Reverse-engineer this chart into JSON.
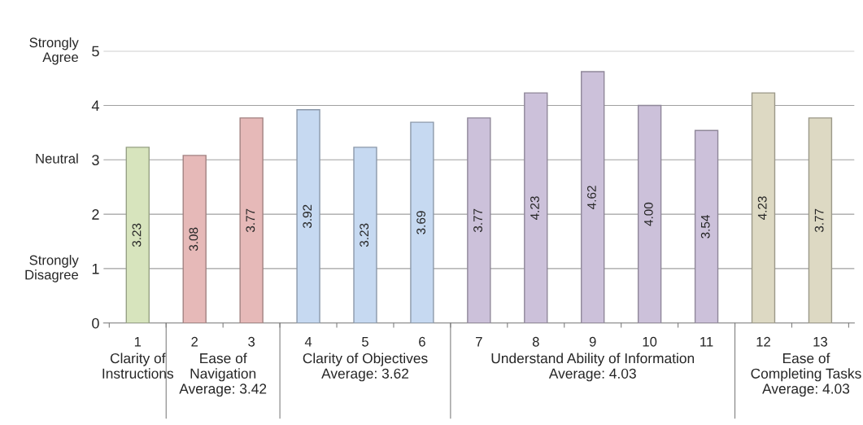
{
  "chart_data": {
    "type": "bar",
    "categories": [
      "1",
      "2",
      "3",
      "4",
      "5",
      "6",
      "7",
      "8",
      "9",
      "10",
      "11",
      "12",
      "13"
    ],
    "values": [
      3.23,
      3.08,
      3.77,
      3.92,
      3.23,
      3.69,
      3.77,
      4.23,
      4.62,
      4.0,
      3.54,
      4.23,
      3.77
    ],
    "value_labels": [
      "3.23",
      "3.08",
      "3.77",
      "3.92",
      "3.23",
      "3.69",
      "3.77",
      "4.23",
      "4.62",
      "4.00",
      "3.54",
      "4.23",
      "3.77"
    ],
    "colors": [
      "#d7e4bd",
      "#e6b9b8",
      "#e6b9b8",
      "#c6d9f1",
      "#c6d9f1",
      "#c6d9f1",
      "#ccc1da",
      "#ccc1da",
      "#ccc1da",
      "#ccc1da",
      "#ccc1da",
      "#ddd9c3",
      "#ddd9c3"
    ],
    "ylim": [
      0,
      5
    ],
    "yticks": [
      0,
      1,
      2,
      3,
      4,
      5
    ],
    "grid": "y",
    "annotations": [
      "Strongly Agree",
      "Neutral",
      "Strongly Disagree",
      "Clarity of\nInstructions",
      "Ease of\nNavigation\nAverage: 3.42",
      "Clarity of Objectives\nAverage: 3.62",
      "Understand Ability of Information\nAverage: 4.03",
      "Ease of\nCompleting Tasks\nAverage: 4.03"
    ]
  }
}
